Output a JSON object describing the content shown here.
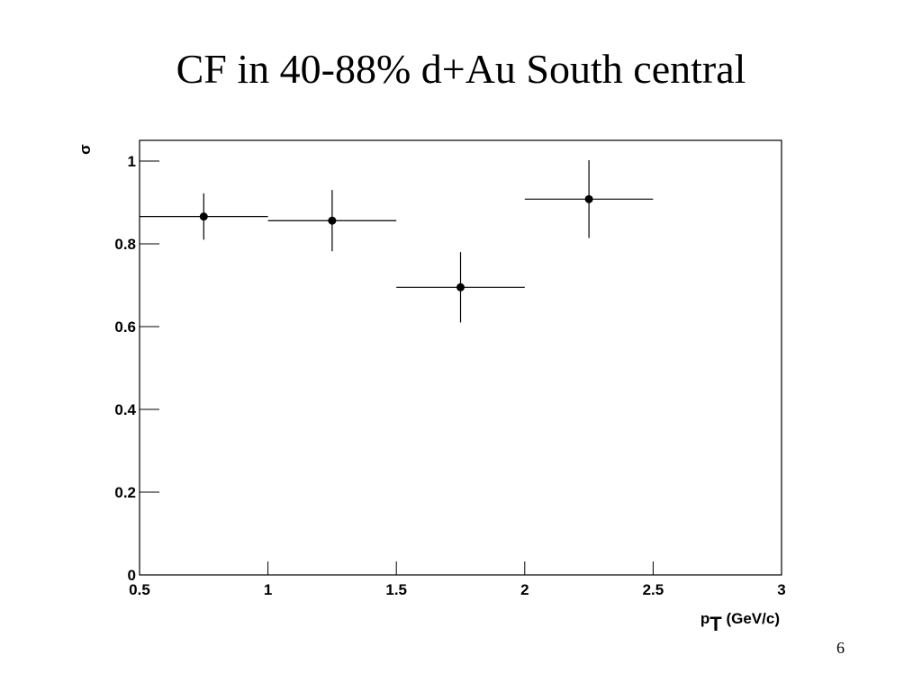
{
  "chart_data": {
    "type": "errorbar",
    "title": "CF in 40-88% d+Au South central",
    "y_label": "σ",
    "x_label": {
      "main": "p",
      "sub": "T",
      "rest": " (GeV/c)"
    },
    "page_number": "6",
    "series": [
      {
        "color": "#000000",
        "x": [
          0.75,
          1.25,
          1.75,
          2.25
        ],
        "xerr": [
          0.25,
          0.25,
          0.25,
          0.25
        ],
        "values": [
          0.866,
          0.856,
          0.695,
          0.908
        ],
        "yerr": [
          0.056,
          0.074,
          0.085,
          0.094
        ]
      }
    ],
    "xlim": [
      0.5,
      3
    ],
    "ylim": [
      0,
      1.05
    ],
    "xticks": [
      0.5,
      1,
      1.5,
      2,
      2.5,
      3
    ],
    "yticks": [
      0,
      0.2,
      0.4,
      0.6,
      0.8,
      1
    ]
  }
}
